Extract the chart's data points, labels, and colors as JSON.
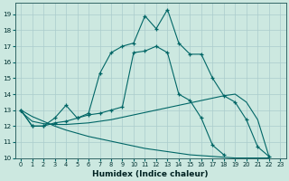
{
  "xlabel": "Humidex (Indice chaleur)",
  "background_color": "#cce8e0",
  "grid_color": "#aacccc",
  "line_color": "#006666",
  "xlim": [
    -0.5,
    23.5
  ],
  "ylim": [
    10,
    19.7
  ],
  "yticks": [
    10,
    11,
    12,
    13,
    14,
    15,
    16,
    17,
    18,
    19
  ],
  "xticks": [
    0,
    1,
    2,
    3,
    4,
    5,
    6,
    7,
    8,
    9,
    10,
    11,
    12,
    13,
    14,
    15,
    16,
    17,
    18,
    19,
    20,
    21,
    22,
    23
  ],
  "line1_x": [
    0,
    1,
    2,
    3,
    4,
    5,
    6,
    7,
    8,
    9,
    10,
    11,
    12,
    13,
    14,
    15,
    16,
    17,
    18,
    19,
    20,
    21,
    22
  ],
  "line1_y": [
    13,
    12,
    12,
    12.5,
    13.3,
    12.5,
    12.8,
    15.3,
    16.6,
    17.0,
    17.2,
    18.9,
    18.1,
    19.3,
    17.2,
    16.5,
    16.5,
    15.0,
    13.9,
    13.5,
    12.4,
    10.7,
    10.1
  ],
  "line2_x": [
    0,
    1,
    2,
    3,
    4,
    5,
    6,
    7,
    8,
    9,
    10,
    11,
    12,
    13,
    14,
    15,
    16,
    17,
    18,
    19,
    20,
    21,
    22
  ],
  "line2_y": [
    13,
    12,
    12,
    12.2,
    12.3,
    12.5,
    12.7,
    12.8,
    13.0,
    13.2,
    16.6,
    16.7,
    17.0,
    16.6,
    14.0,
    13.6,
    12.5,
    10.8,
    10.2,
    null,
    null,
    null,
    null
  ],
  "line3_x": [
    0,
    1,
    2,
    3,
    4,
    5,
    6,
    7,
    8,
    9,
    10,
    11,
    12,
    13,
    14,
    15,
    16,
    17,
    18,
    19,
    20,
    21,
    22
  ],
  "line3_y": [
    12.9,
    12.3,
    12.15,
    12.1,
    12.1,
    12.15,
    12.2,
    12.3,
    12.4,
    12.55,
    12.7,
    12.85,
    13.0,
    13.15,
    13.3,
    13.45,
    13.6,
    13.75,
    13.9,
    14.0,
    13.5,
    12.4,
    10.1
  ],
  "line4_x": [
    0,
    1,
    2,
    3,
    4,
    5,
    6,
    7,
    8,
    9,
    10,
    11,
    12,
    13,
    14,
    15,
    16,
    17,
    18,
    19,
    20,
    21,
    22
  ],
  "line4_y": [
    13.0,
    12.6,
    12.3,
    12.0,
    11.75,
    11.55,
    11.35,
    11.2,
    11.05,
    10.9,
    10.75,
    10.6,
    10.5,
    10.4,
    10.3,
    10.2,
    10.15,
    10.1,
    10.05,
    10.0,
    10.0,
    10.0,
    10.0
  ]
}
